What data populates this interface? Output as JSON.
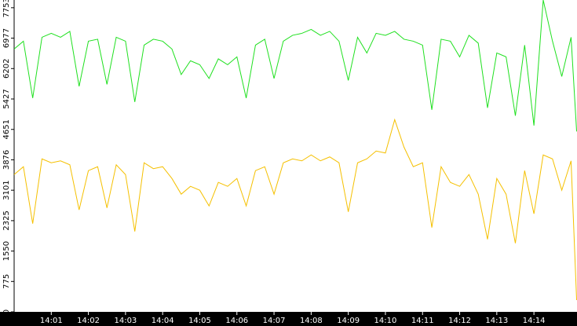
{
  "chart_data": {
    "type": "line",
    "x": [
      0,
      0.25,
      0.5,
      0.75,
      1,
      1.25,
      1.5,
      1.75,
      2,
      2.25,
      2.5,
      2.75,
      3,
      3.25,
      3.5,
      3.75,
      4,
      4.25,
      4.5,
      4.75,
      5,
      5.25,
      5.5,
      5.75,
      6,
      6.25,
      6.5,
      6.75,
      7,
      7.25,
      7.5,
      7.75,
      8,
      8.25,
      8.5,
      8.75,
      9,
      9.25,
      9.5,
      9.75,
      10,
      10.25,
      10.5,
      10.75,
      11,
      11.25,
      11.5,
      11.75,
      12,
      12.25,
      12.5,
      12.75,
      13,
      13.25,
      13.5,
      13.75,
      14,
      14.25,
      14.5,
      14.75,
      15,
      15.15
    ],
    "series": [
      {
        "color": "#1fe01f",
        "values": [
          6700,
          6900,
          5450,
          7000,
          7100,
          7000,
          7150,
          5750,
          6900,
          6950,
          5800,
          7000,
          6900,
          5350,
          6800,
          6950,
          6900,
          6700,
          6050,
          6400,
          6300,
          5950,
          6450,
          6300,
          6500,
          5450,
          6800,
          6950,
          5950,
          6900,
          7050,
          7100,
          7200,
          7050,
          7150,
          6900,
          5900,
          7000,
          6600,
          7100,
          7050,
          7150,
          6950,
          6900,
          6800,
          5150,
          6950,
          6900,
          6500,
          7050,
          6850,
          5200,
          6600,
          6500,
          5000,
          6800,
          4750,
          7950,
          6900,
          6000,
          7000,
          4600
        ]
      },
      {
        "color": "#f5c000",
        "values": [
          3500,
          3700,
          2250,
          3900,
          3800,
          3850,
          3750,
          2600,
          3600,
          3700,
          2650,
          3750,
          3500,
          2050,
          3800,
          3650,
          3700,
          3400,
          3000,
          3200,
          3100,
          2700,
          3300,
          3200,
          3400,
          2700,
          3600,
          3700,
          3000,
          3800,
          3900,
          3850,
          4000,
          3850,
          3950,
          3800,
          2550,
          3800,
          3900,
          4100,
          4050,
          4900,
          4200,
          3700,
          3800,
          2150,
          3700,
          3300,
          3200,
          3500,
          3000,
          1850,
          3400,
          3000,
          1750,
          3600,
          2500,
          4000,
          3900,
          3100,
          3850,
          300
        ]
      }
    ],
    "xlim": [
      0,
      15.16
    ],
    "xticks": [
      {
        "value": 1,
        "label": "14:01"
      },
      {
        "value": 2,
        "label": "14:02"
      },
      {
        "value": 3,
        "label": "14:03"
      },
      {
        "value": 4,
        "label": "14:04"
      },
      {
        "value": 5,
        "label": "14:05"
      },
      {
        "value": 6,
        "label": "14:06"
      },
      {
        "value": 7,
        "label": "14:07"
      },
      {
        "value": 8,
        "label": "14:08"
      },
      {
        "value": 9,
        "label": "14:09"
      },
      {
        "value": 10,
        "label": "14:10"
      },
      {
        "value": 11,
        "label": "14:11"
      },
      {
        "value": 12,
        "label": "14:12"
      },
      {
        "value": 13,
        "label": "14:13"
      },
      {
        "value": 14,
        "label": "14:14"
      }
    ],
    "ylim": [
      0,
      7950
    ],
    "yticks": [
      0,
      775,
      1550,
      2325,
      3101,
      3876,
      4651,
      5427,
      6202,
      6977,
      7753
    ]
  }
}
